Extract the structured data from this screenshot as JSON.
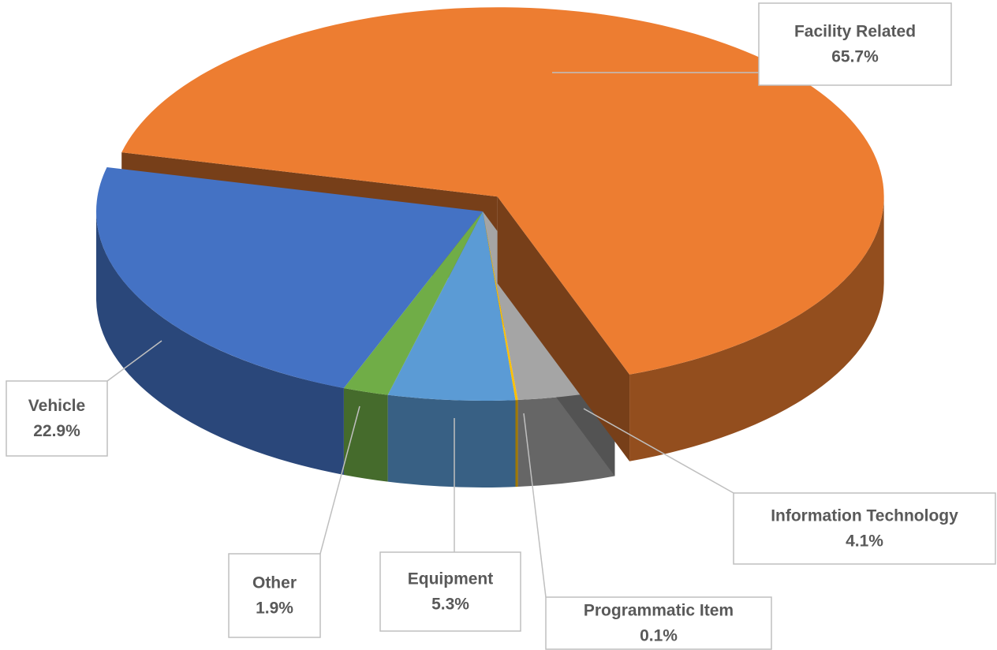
{
  "chart_data": {
    "type": "pie3d",
    "categories": [
      "Facility Related",
      "Information Technology",
      "Programmatic Item",
      "Equipment",
      "Other",
      "Vehicle"
    ],
    "values": [
      65.7,
      4.1,
      0.1,
      5.3,
      1.9,
      22.9
    ],
    "value_labels": [
      "65.7%",
      "4.1%",
      "0.1%",
      "5.3%",
      "1.9%",
      "22.9%"
    ],
    "colors": [
      "#ed7d31",
      "#a5a5a5",
      "#ffc000",
      "#5b9bd5",
      "#70ad47",
      "#4472c4"
    ],
    "explode": [
      true,
      false,
      false,
      false,
      false,
      false
    ]
  }
}
